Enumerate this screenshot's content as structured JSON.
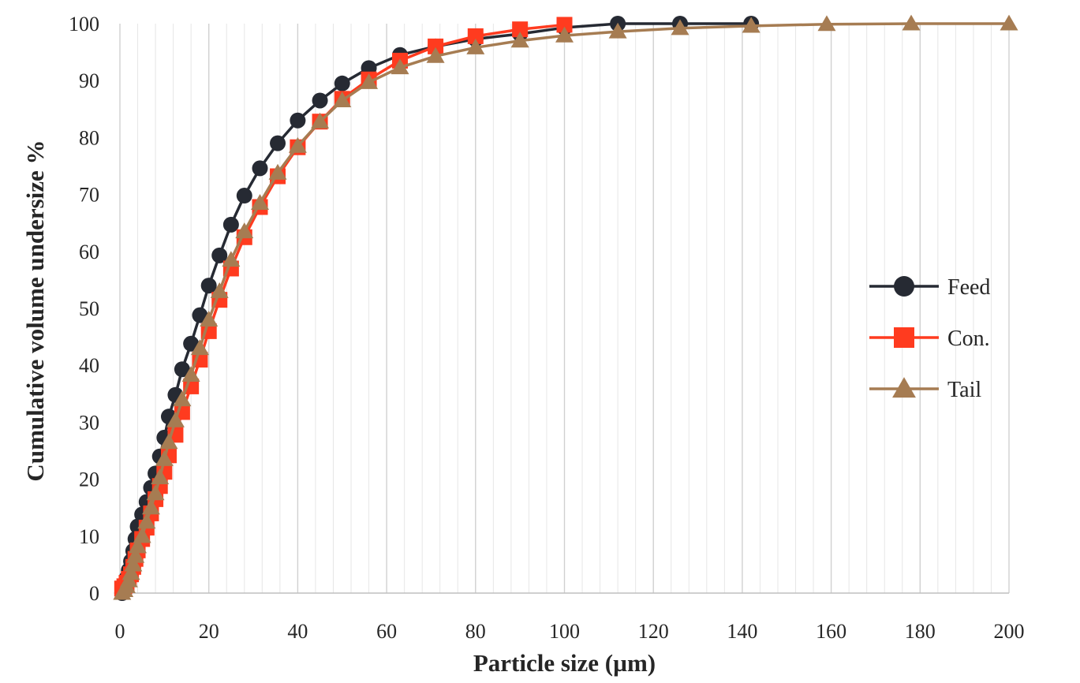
{
  "chart_data": {
    "type": "line",
    "xlabel": "Particle size (µm)",
    "ylabel": "Cumulative volume undersize %",
    "xlim": [
      0,
      200
    ],
    "ylim": [
      0,
      100
    ],
    "x_ticks": [
      "0",
      "20",
      "40",
      "60",
      "80",
      "100",
      "120",
      "140",
      "160",
      "180",
      "200"
    ],
    "y_ticks": [
      "0",
      "10",
      "20",
      "30",
      "40",
      "50",
      "60",
      "70",
      "80",
      "90",
      "100"
    ],
    "grid": "vertical",
    "legend_position": "right",
    "series": [
      {
        "name": "Feed",
        "color": "#262a33",
        "marker": "circle",
        "x": [
          0.5,
          1.0,
          1.5,
          2.0,
          2.5,
          3.0,
          3.5,
          4.0,
          5.0,
          6.0,
          7.0,
          8.0,
          9.0,
          10.0,
          11.0,
          12.5,
          14.0,
          16.0,
          18.0,
          20.0,
          22.4,
          25.0,
          28.0,
          31.5,
          35.5,
          40.0,
          45.0,
          50.0,
          56.0,
          63.0,
          71.0,
          80.0,
          90.0,
          100.0,
          112.0,
          126.0,
          142.0
        ],
        "y": [
          0.0,
          1.3,
          2.6,
          4.0,
          5.6,
          7.4,
          9.5,
          11.7,
          13.8,
          16.0,
          18.5,
          21.0,
          24.0,
          27.3,
          31.0,
          34.8,
          39.3,
          43.8,
          48.8,
          54.0,
          59.3,
          64.7,
          69.8,
          74.6,
          79.0,
          83.0,
          86.5,
          89.5,
          92.2,
          94.5,
          96.0,
          97.3,
          98.2,
          99.3,
          100.0,
          100.0,
          100.0
        ]
      },
      {
        "name": "Con.",
        "color": "#ff3b1f",
        "marker": "square",
        "x": [
          0.5,
          1.0,
          1.5,
          2.0,
          2.5,
          3.0,
          3.5,
          4.0,
          5.0,
          6.0,
          7.0,
          8.0,
          9.0,
          10.0,
          11.0,
          12.5,
          14.0,
          16.0,
          18.0,
          20.0,
          22.4,
          25.0,
          28.0,
          31.5,
          35.5,
          40.0,
          45.0,
          50.0,
          56.0,
          63.0,
          71.0,
          80.0,
          90.0,
          100.0
        ],
        "y": [
          0.8,
          1.2,
          1.8,
          2.5,
          3.3,
          4.6,
          6.0,
          7.5,
          9.5,
          11.5,
          14.0,
          16.5,
          18.8,
          21.3,
          24.2,
          27.8,
          31.8,
          36.3,
          41.0,
          46.0,
          51.5,
          57.0,
          62.5,
          67.8,
          73.2,
          78.3,
          82.8,
          86.8,
          90.2,
          93.5,
          96.0,
          97.8,
          99.0,
          99.8
        ]
      },
      {
        "name": "Tail",
        "color": "#a67c52",
        "marker": "triangle",
        "x": [
          0.5,
          1.0,
          1.5,
          2.0,
          2.5,
          3.0,
          3.5,
          4.0,
          5.0,
          6.0,
          7.0,
          8.0,
          9.0,
          10.0,
          11.0,
          12.5,
          14.0,
          16.0,
          18.0,
          20.0,
          22.4,
          25.0,
          28.0,
          31.5,
          35.5,
          40.0,
          45.0,
          50.0,
          56.0,
          63.0,
          71.0,
          80.0,
          90.0,
          100.0,
          112.0,
          126.0,
          142.0,
          159.0,
          178.0,
          200.0
        ],
        "y": [
          0.0,
          0.5,
          1.2,
          2.2,
          3.5,
          5.0,
          6.5,
          8.2,
          10.0,
          12.5,
          15.0,
          17.5,
          20.3,
          23.5,
          26.5,
          30.3,
          34.0,
          38.3,
          43.0,
          48.0,
          53.0,
          58.5,
          63.5,
          68.5,
          73.8,
          78.5,
          82.8,
          86.5,
          89.7,
          92.3,
          94.3,
          95.8,
          97.0,
          97.9,
          98.6,
          99.2,
          99.6,
          99.9,
          100.0,
          100.0
        ]
      }
    ]
  }
}
